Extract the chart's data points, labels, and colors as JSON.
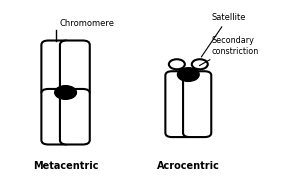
{
  "bg_color": "#ffffff",
  "line_color": "#000000",
  "centromere_color": "#000000",
  "lw": 1.5,
  "label_chromomere": "Chromomere",
  "label_satellite": "Satellite",
  "label_secondary": "Secondary\nconstriction",
  "title_meta": "Metacentric",
  "title_acro": "Acrocentric"
}
